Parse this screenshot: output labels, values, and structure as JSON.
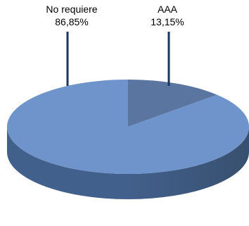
{
  "chart_data": {
    "type": "pie",
    "title": "",
    "slices": [
      {
        "label": "No requiere",
        "value": 86.85,
        "value_label": "86,85%"
      },
      {
        "label": "AAA",
        "value": 13.15,
        "value_label": "13,15%"
      }
    ],
    "style": "3d",
    "legend": "none",
    "colors": {
      "no_requiere_top": "#6f93cb",
      "no_requiere_side": "#42608c",
      "aaa_top": "#5a76a0",
      "aaa_side": "#38506f",
      "leader_lines": "#1b3560"
    }
  }
}
